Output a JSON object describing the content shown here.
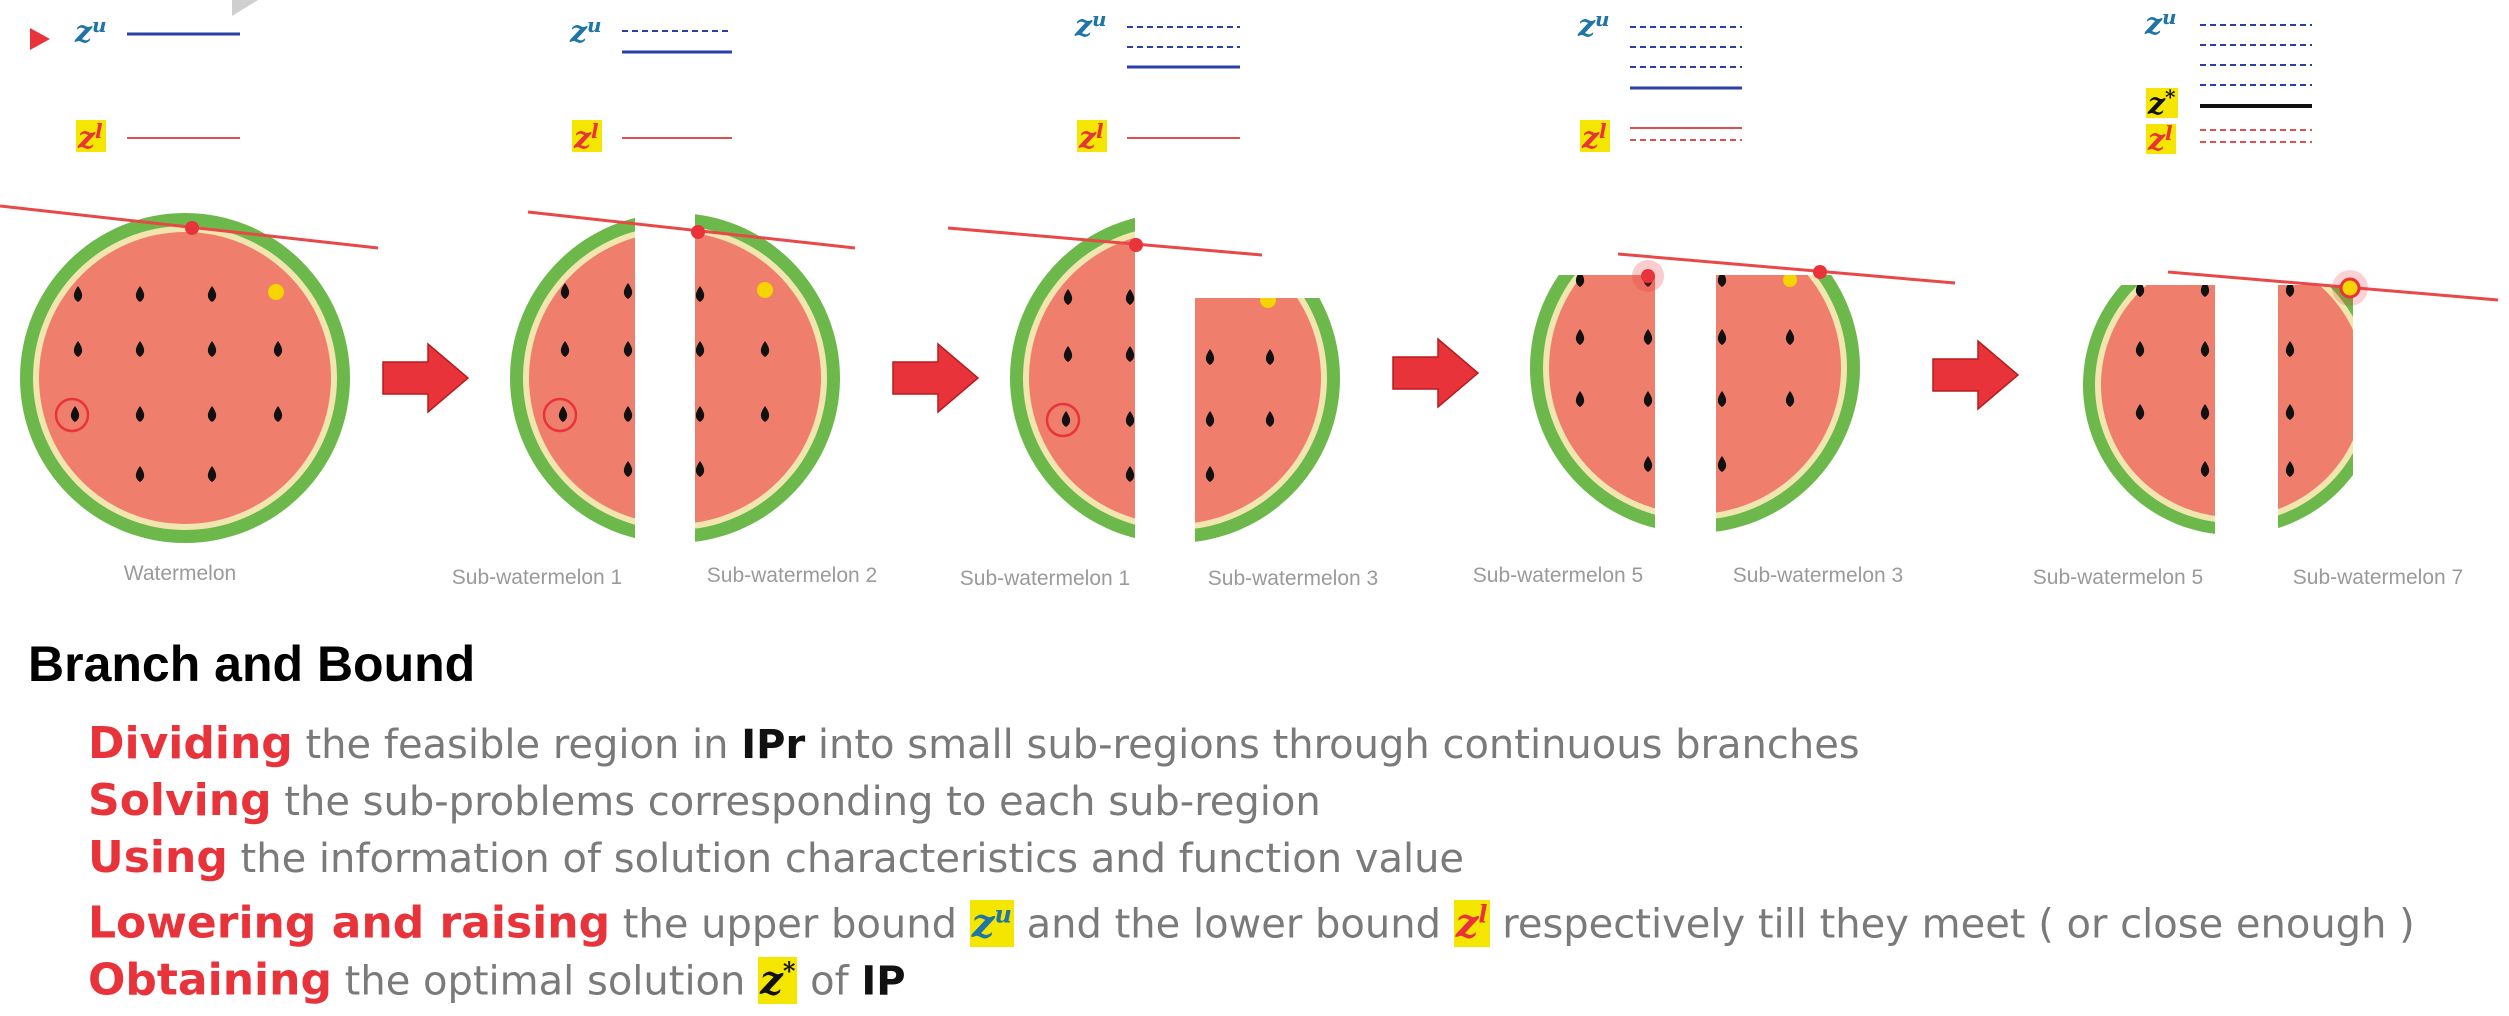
{
  "heading": "Branch and Bound",
  "steps": [
    {
      "keyword": "Dividing",
      "t1": " the feasible region in ",
      "b1": "IPr",
      "t2": " into small sub-regions through continuous branches"
    },
    {
      "keyword": "Solving",
      "t1": " the sub-problems corresponding to each sub-region"
    },
    {
      "keyword": "Using",
      "t1": " the information of solution characteristics and function value"
    },
    {
      "keyword": "Lowering and raising",
      "t1": " the upper bound ",
      "t2": " and the lower bound ",
      "t3": " respectively till they meet ( or close enough )"
    },
    {
      "keyword": "Obtaining",
      "t1": " the optimal solution ",
      "t2": " of ",
      "b1": "IP"
    }
  ],
  "symbols": {
    "z": "z",
    "u": "u",
    "l": "l",
    "star": "*"
  },
  "stages": [
    {
      "labels": [
        "Watermelon"
      ]
    },
    {
      "labels": [
        "Sub-watermelon 1",
        "Sub-watermelon 2"
      ]
    },
    {
      "labels": [
        "Sub-watermelon 1",
        "Sub-watermelon 3"
      ]
    },
    {
      "labels": [
        "Sub-watermelon 5",
        "Sub-watermelon 3"
      ]
    },
    {
      "labels": [
        "Sub-watermelon 5",
        "Sub-watermelon 7"
      ]
    }
  ],
  "colors": {
    "accent": "#e8333a",
    "upper_line": "#2b3fa8",
    "lower_line": "#e05050",
    "rind": "#6cb84a",
    "flesh": "#ef7f6c",
    "pith": "#f2e6b0",
    "zu_text": "#1f74a8",
    "highlight": "#f5e600"
  }
}
